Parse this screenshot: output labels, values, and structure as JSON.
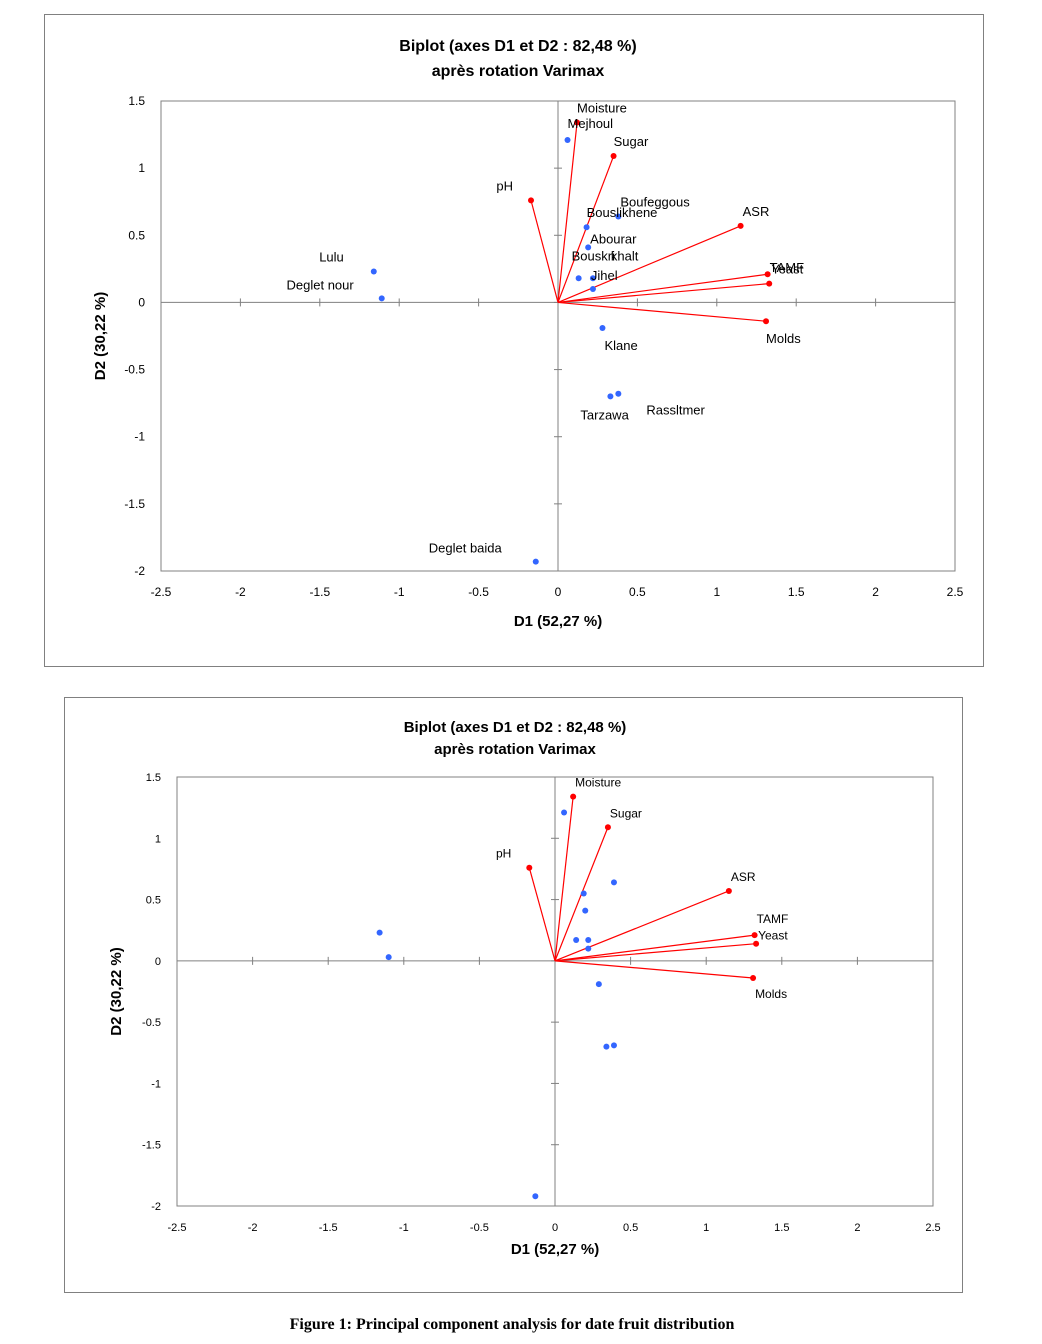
{
  "figure_caption": "Figure 1: Principal component analysis for date fruit distribution",
  "colors": {
    "variables": "#ff0000",
    "observations": "#3366ff",
    "axes": "#808080",
    "frame": "#808080"
  },
  "chart_data": [
    {
      "type": "scatter",
      "subtype": "biplot",
      "title": "Biplot (axes D1 et D2 : 82,48 %)",
      "subtitle": "après rotation Varimax",
      "xlabel": "D1 (52,27 %)",
      "ylabel": "D2 (30,22 %)",
      "xlim": [
        -2.5,
        2.5
      ],
      "ylim": [
        -2,
        1.5
      ],
      "xticks": [
        "-2.5",
        "-2",
        "-1.5",
        "-1",
        "-0.5",
        "0",
        "0.5",
        "1",
        "1.5",
        "2",
        "2.5"
      ],
      "yticks": [
        "-2",
        "-1.5",
        "-1",
        "-0.5",
        "0",
        "0.5",
        "1",
        "1.5"
      ],
      "grid": false,
      "variables": [
        {
          "name": "Moisture",
          "x": 0.12,
          "y": 1.34
        },
        {
          "name": "Sugar",
          "x": 0.35,
          "y": 1.09
        },
        {
          "name": "pH",
          "x": -0.17,
          "y": 0.76
        },
        {
          "name": "ASR",
          "x": 1.15,
          "y": 0.57
        },
        {
          "name": "TAMF",
          "x": 1.32,
          "y": 0.21
        },
        {
          "name": "Yeast",
          "x": 1.33,
          "y": 0.14
        },
        {
          "name": "Molds",
          "x": 1.31,
          "y": -0.14
        }
      ],
      "observations": [
        {
          "name": "Mejhoul",
          "x": 0.06,
          "y": 1.21
        },
        {
          "name": "Boufeggous",
          "x": 0.38,
          "y": 0.64
        },
        {
          "name": "Bouslikhene",
          "x": 0.18,
          "y": 0.56
        },
        {
          "name": "Abourar",
          "x": 0.19,
          "y": 0.41
        },
        {
          "name": "Bouskri",
          "x": 0.13,
          "y": 0.18
        },
        {
          "name": "khalt",
          "x": 0.22,
          "y": 0.18
        },
        {
          "name": "Jihel",
          "x": 0.22,
          "y": 0.1
        },
        {
          "name": "Klane",
          "x": 0.28,
          "y": -0.19
        },
        {
          "name": "Tarzawa",
          "x": 0.33,
          "y": -0.7
        },
        {
          "name": "Rassltmer",
          "x": 0.38,
          "y": -0.68
        },
        {
          "name": "Lulu",
          "x": -1.16,
          "y": 0.23
        },
        {
          "name": "Deglet nour",
          "x": -1.11,
          "y": 0.03
        },
        {
          "name": "Deglet baida",
          "x": -0.14,
          "y": -1.93
        }
      ]
    },
    {
      "type": "scatter",
      "subtype": "biplot",
      "title": "Biplot (axes D1 et D2 : 82,48 %)",
      "subtitle": "après rotation Varimax",
      "xlabel": "D1 (52,27 %)",
      "ylabel": "D2 (30,22 %)",
      "xlim": [
        -2.5,
        2.5
      ],
      "ylim": [
        -2,
        1.5
      ],
      "xticks": [
        "-2.5",
        "-2",
        "-1.5",
        "-1",
        "-0.5",
        "0",
        "0.5",
        "1",
        "1.5",
        "2",
        "2.5"
      ],
      "yticks": [
        "-2",
        "-1.5",
        "-1",
        "-0.5",
        "0",
        "0.5",
        "1",
        "1.5"
      ],
      "grid": false,
      "variables": [
        {
          "name": "Moisture",
          "x": 0.12,
          "y": 1.34
        },
        {
          "name": "Sugar",
          "x": 0.35,
          "y": 1.09
        },
        {
          "name": "pH",
          "x": -0.17,
          "y": 0.76
        },
        {
          "name": "ASR",
          "x": 1.15,
          "y": 0.57
        },
        {
          "name": "TAMF",
          "x": 1.32,
          "y": 0.21
        },
        {
          "name": "Yeast",
          "x": 1.33,
          "y": 0.14
        },
        {
          "name": "Molds",
          "x": 1.31,
          "y": -0.14
        }
      ],
      "observations": [
        {
          "x": 0.06,
          "y": 1.21
        },
        {
          "x": 0.39,
          "y": 0.64
        },
        {
          "x": 0.19,
          "y": 0.55
        },
        {
          "x": 0.2,
          "y": 0.41
        },
        {
          "x": 0.14,
          "y": 0.17
        },
        {
          "x": 0.22,
          "y": 0.17
        },
        {
          "x": 0.22,
          "y": 0.1
        },
        {
          "x": 0.29,
          "y": -0.19
        },
        {
          "x": 0.34,
          "y": -0.7
        },
        {
          "x": 0.39,
          "y": -0.69
        },
        {
          "x": -1.16,
          "y": 0.23
        },
        {
          "x": -1.1,
          "y": 0.03
        },
        {
          "x": -0.13,
          "y": -1.92
        }
      ]
    }
  ]
}
